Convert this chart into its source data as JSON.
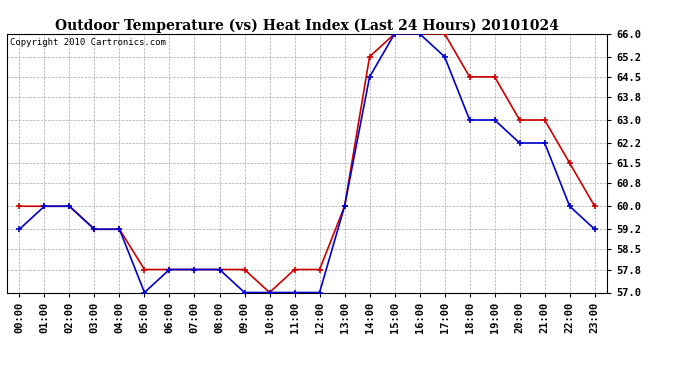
{
  "title": "Outdoor Temperature (vs) Heat Index (Last 24 Hours) 20101024",
  "copyright_text": "Copyright 2010 Cartronics.com",
  "x_labels": [
    "00:00",
    "01:00",
    "02:00",
    "03:00",
    "04:00",
    "05:00",
    "06:00",
    "07:00",
    "08:00",
    "09:00",
    "10:00",
    "11:00",
    "12:00",
    "13:00",
    "14:00",
    "15:00",
    "16:00",
    "17:00",
    "18:00",
    "19:00",
    "20:00",
    "21:00",
    "22:00",
    "23:00"
  ],
  "outdoor_temp": [
    59.2,
    60.0,
    60.0,
    59.2,
    59.2,
    57.0,
    57.8,
    57.8,
    57.8,
    57.0,
    57.0,
    57.0,
    57.0,
    60.0,
    64.5,
    66.0,
    66.0,
    65.2,
    63.0,
    63.0,
    62.2,
    62.2,
    60.0,
    59.2
  ],
  "heat_index": [
    60.0,
    60.0,
    60.0,
    59.2,
    59.2,
    57.8,
    57.8,
    57.8,
    57.8,
    57.8,
    57.0,
    57.8,
    57.8,
    60.0,
    65.2,
    66.0,
    66.0,
    66.0,
    64.5,
    64.5,
    63.0,
    63.0,
    61.5,
    60.0
  ],
  "ylim": [
    57.0,
    66.0
  ],
  "yticks": [
    57.0,
    57.8,
    58.5,
    59.2,
    60.0,
    60.8,
    61.5,
    62.2,
    63.0,
    63.8,
    64.5,
    65.2,
    66.0
  ],
  "outdoor_color": "#0000cc",
  "heat_index_color": "#cc0000",
  "bg_color": "#ffffff",
  "grid_color": "#aaaaaa",
  "title_fontsize": 10,
  "tick_fontsize": 7.5,
  "copyright_fontsize": 6.5
}
